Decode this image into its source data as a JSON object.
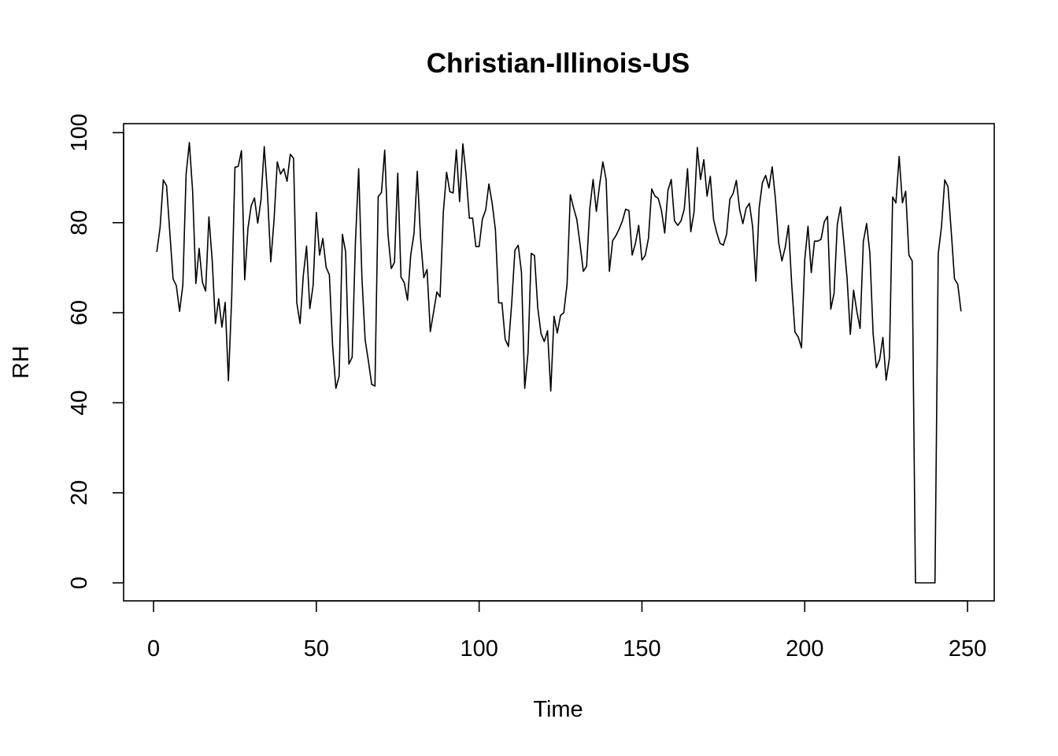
{
  "chart_data": {
    "type": "line",
    "title": "Christian-Illinois-US",
    "xlabel": "Time",
    "ylabel": "RH",
    "xlim": [
      -9.2,
      258.2
    ],
    "ylim": [
      -4,
      102
    ],
    "x_ticks": [
      0,
      50,
      100,
      150,
      200,
      250
    ],
    "y_ticks": [
      0,
      20,
      40,
      60,
      80,
      100
    ],
    "grid": false,
    "legend": "none",
    "line_color": "#000000",
    "series": [
      {
        "x_start": 1,
        "values": [
          73.5,
          78.9,
          89.5,
          88.2,
          77.8,
          67.5,
          66.0,
          60.3,
          66.2,
          90.8,
          97.8,
          87.0,
          66.5,
          74.3,
          66.8,
          64.8,
          81.3,
          71.8,
          57.6,
          63.1,
          56.8,
          62.3,
          44.9,
          63.3,
          92.3,
          92.5,
          96.0,
          67.3,
          78.8,
          83.8,
          85.5,
          79.9,
          85.1,
          96.9,
          86.4,
          71.3,
          80.5,
          93.5,
          90.8,
          92.0,
          89.2,
          95.2,
          94.3,
          62.2,
          57.6,
          68.3,
          74.8,
          60.9,
          66.0,
          82.3,
          72.8,
          76.5,
          70.1,
          68.4,
          52.5,
          43.2,
          45.9,
          77.4,
          73.5,
          48.6,
          50.1,
          75.6,
          92.0,
          67.8,
          53.9,
          49.2,
          44.1,
          43.7,
          85.8,
          86.7,
          96.1,
          77.4,
          69.8,
          71.2,
          91.0,
          67.9,
          66.7,
          62.8,
          72.9,
          77.6,
          91.4,
          76.6,
          67.8,
          69.6,
          55.8,
          60.1,
          64.6,
          63.5,
          82.3,
          91.2,
          86.9,
          86.6,
          96.2,
          84.7,
          97.5,
          90.5,
          81.0,
          81.0,
          74.7,
          74.7,
          80.8,
          82.8,
          88.6,
          84.3,
          78.4,
          62.2,
          62.2,
          54.1,
          52.5,
          62.1,
          73.9,
          75.0,
          69.0,
          43.2,
          51.0,
          73.2,
          72.7,
          61.1,
          55.4,
          53.6,
          56.0,
          42.6,
          59.2,
          55.5,
          59.4,
          60.0,
          66.3,
          86.2,
          83.3,
          80.7,
          75.2,
          69.2,
          70.3,
          83.2,
          89.6,
          82.5,
          88.4,
          93.5,
          89.6,
          69.2,
          76.0,
          77.1,
          78.6,
          80.4,
          83.0,
          82.7,
          72.8,
          75.4,
          79.4,
          71.7,
          72.7,
          76.5,
          87.5,
          85.9,
          85.4,
          82.7,
          77.7,
          87.2,
          89.6,
          80.4,
          79.4,
          80.4,
          83.0,
          92.0,
          78.0,
          82.3,
          96.7,
          89.6,
          94.0,
          85.9,
          90.3,
          80.7,
          77.7,
          75.4,
          75.0,
          77.4,
          85.2,
          86.5,
          89.4,
          82.9,
          79.8,
          83.2,
          84.3,
          79.1,
          67.0,
          83.3,
          88.9,
          90.5,
          87.7,
          92.4,
          85.3,
          75.5,
          71.5,
          74.5,
          79.4,
          66.3,
          55.7,
          54.6,
          52.2,
          71.8,
          79.2,
          68.9,
          75.9,
          75.9,
          76.3,
          80.2,
          81.4,
          60.8,
          64.3,
          79.6,
          83.5,
          75.8,
          67.7,
          55.2,
          65.0,
          60.3,
          56.5,
          75.8,
          79.8,
          73.3,
          55.3,
          47.8,
          49.6,
          54.5,
          45.0,
          49.9,
          85.7,
          84.4,
          94.7,
          84.4,
          87.0,
          72.8,
          71.5,
          0,
          0,
          0,
          0,
          0,
          0,
          0,
          73.1,
          79.1,
          89.5,
          88.0,
          78.0,
          67.5,
          66.3,
          60.3
        ]
      }
    ]
  }
}
